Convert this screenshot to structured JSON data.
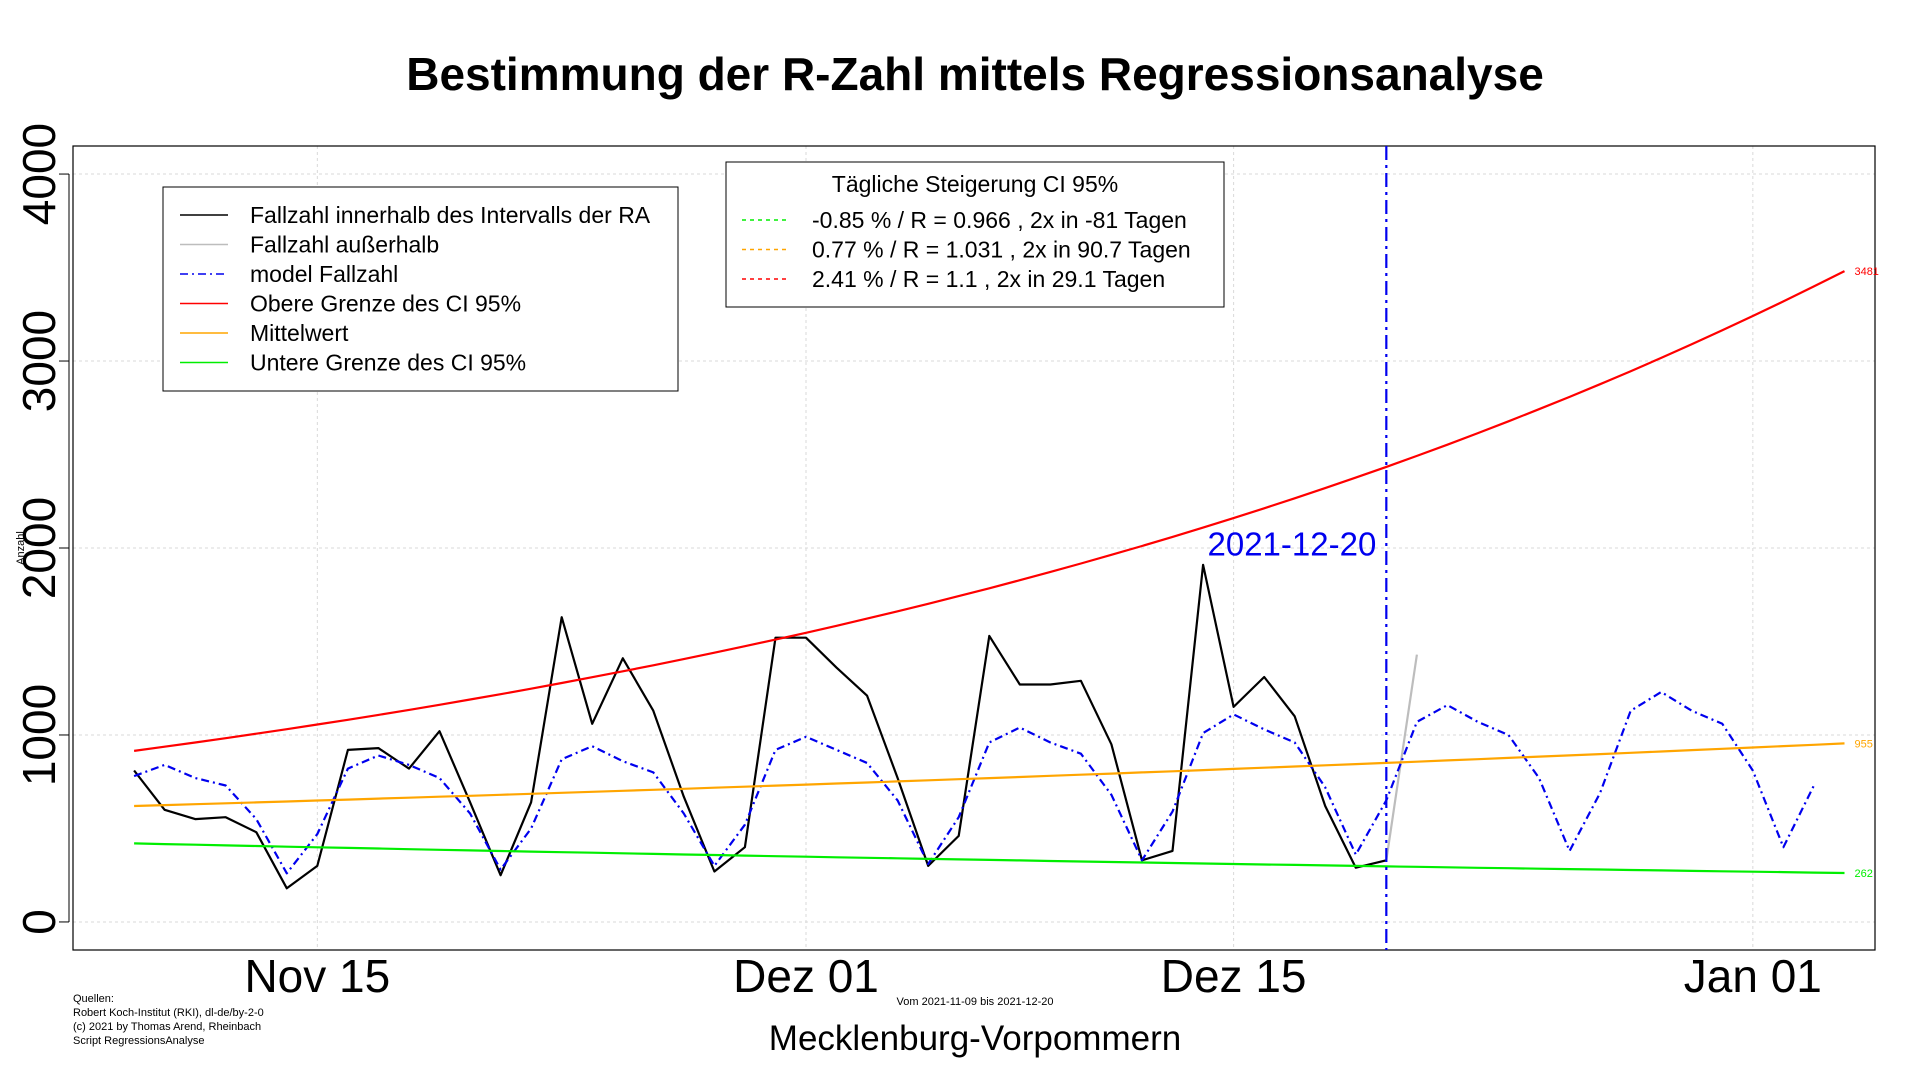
{
  "chart_data": {
    "type": "line",
    "title": "Bestimmung der R-Zahl mittels Regressionsanalyse",
    "ylabel": "Anzahl",
    "xlabel": "Mecklenburg-Vorpommern",
    "subtitle": "Vom 2021-11-09 bis 2021-12-20",
    "sources": [
      "Quellen:",
      "Robert Koch-Institut (RKI), dl-de/by-2-0",
      "(c) 2021 by Thomas Arend, Rheinbach",
      "Script RegressionsAnalyse"
    ],
    "ylim": [
      -150,
      4150
    ],
    "xlim_day_index": [
      -2,
      57
    ],
    "yticks": [
      0,
      1000,
      2000,
      3000,
      4000
    ],
    "xticks": [
      {
        "label": "Nov 15",
        "day_index": 6
      },
      {
        "label": "Dez 01",
        "day_index": 22
      },
      {
        "label": "Dez 15",
        "day_index": 36
      },
      {
        "label": "Jan 01",
        "day_index": 53
      }
    ],
    "start_date": "2021-11-09",
    "cutoff": {
      "label": "2021-12-20",
      "day_index": 41
    },
    "grid": true,
    "series": [
      {
        "name": "Fallzahl innerhalb des Intervalls der RA",
        "color": "#000000",
        "dash": "",
        "width": 2.2,
        "x_start": 0,
        "values": [
          810,
          600,
          550,
          560,
          480,
          180,
          300,
          920,
          930,
          820,
          1020,
          640,
          250,
          640,
          1630,
          1060,
          1410,
          1130,
          670,
          270,
          400,
          1520,
          1520,
          1360,
          1210,
          770,
          300,
          460,
          1530,
          1270,
          1270,
          1290,
          950,
          330,
          380,
          1910,
          1150,
          1310,
          1100,
          620,
          290,
          330
        ]
      },
      {
        "name": "Fallzahl außerhalb",
        "color": "#bdbdbd",
        "dash": "",
        "width": 2.2,
        "x_start": 41,
        "values": [
          330,
          1430
        ]
      },
      {
        "name": "model Fallzahl",
        "color": "#0000ee",
        "dash": "8,4,2,4",
        "width": 2.2,
        "x_start": 0,
        "values": [
          780,
          840,
          770,
          730,
          550,
          260,
          470,
          820,
          890,
          840,
          770,
          580,
          280,
          500,
          870,
          940,
          860,
          800,
          580,
          300,
          520,
          920,
          990,
          920,
          850,
          650,
          310,
          560,
          960,
          1040,
          960,
          900,
          680,
          330,
          590,
          1010,
          1110,
          1030,
          960,
          720,
          360,
          650,
          1070,
          1160,
          1070,
          1000,
          770,
          380,
          690,
          1130,
          1230,
          1130,
          1060,
          810,
          400,
          730
        ]
      },
      {
        "name": "Obere Grenze des CI 95%",
        "color": "#ff0000",
        "dash": "",
        "width": 2.2,
        "growth": {
          "start": 915,
          "end": 3481,
          "x_start": 0,
          "x_end": 56
        }
      },
      {
        "name": "Mittelwert",
        "color": "#ffa500",
        "dash": "",
        "width": 2.2,
        "growth": {
          "start": 620,
          "end": 955,
          "x_start": 0,
          "x_end": 56
        }
      },
      {
        "name": "Untere Grenze des CI 95%",
        "color": "#00ee00",
        "dash": "",
        "width": 2.2,
        "growth": {
          "start": 420,
          "end": 262,
          "x_start": 0,
          "x_end": 56
        }
      }
    ],
    "end_labels": [
      {
        "text": "3481",
        "value": 3481,
        "color": "#ff0000"
      },
      {
        "text": "955",
        "value": 955,
        "color": "#ffa500"
      },
      {
        "text": "262",
        "value": 262,
        "color": "#00ee00"
      }
    ],
    "legend": {
      "placement": "top-left",
      "entries": [
        {
          "label": "Fallzahl innerhalb des Intervalls der RA",
          "color": "#000000",
          "dash": ""
        },
        {
          "label": "Fallzahl außerhalb",
          "color": "#bdbdbd",
          "dash": ""
        },
        {
          "label": "model Fallzahl",
          "color": "#0000ee",
          "dash": "8,4,2,4"
        },
        {
          "label": "Obere Grenze des CI 95%",
          "color": "#ff0000",
          "dash": ""
        },
        {
          "label": "Mittelwert",
          "color": "#ffa500",
          "dash": ""
        },
        {
          "label": "Untere Grenze des CI 95%",
          "color": "#00ee00",
          "dash": ""
        }
      ]
    },
    "growth_legend": {
      "placement": "top-center",
      "title": "Tägliche Steigerung CI  95%",
      "entries": [
        {
          "label": "-0.85 % / R = 0.966 , 2x in -81 Tagen",
          "color": "#00ee00"
        },
        {
          "label": "0.77 % / R = 1.031 , 2x in 90.7 Tagen",
          "color": "#ffa500"
        },
        {
          "label": "2.41 % / R = 1.1 , 2x in 29.1 Tagen",
          "color": "#ff0000"
        }
      ]
    }
  }
}
